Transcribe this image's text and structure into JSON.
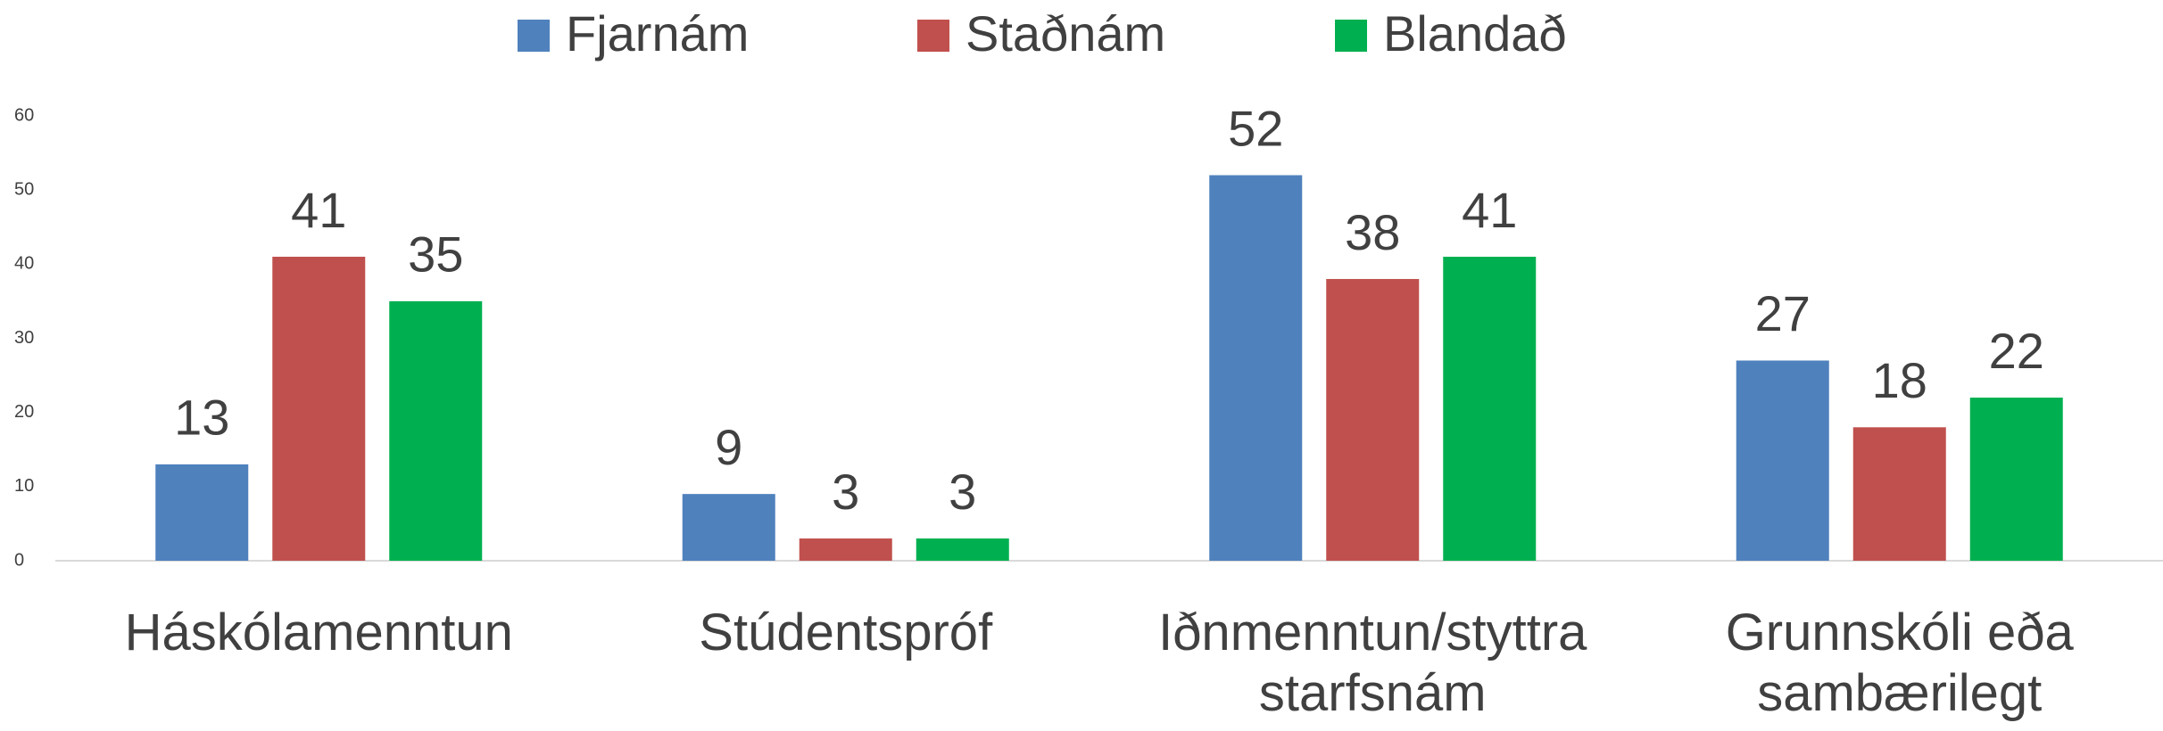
{
  "chart_data": {
    "type": "bar",
    "categories": [
      "Háskólamenntun",
      "Stúdentspróf",
      "Iðnmenntun/styttra starfsnám",
      "Grunnskóli eða sambærilegt"
    ],
    "series": [
      {
        "name": "Fjarnám",
        "color": "#4f81bd",
        "values": [
          13,
          9,
          52,
          27
        ]
      },
      {
        "name": "Staðnám",
        "color": "#c0504d",
        "values": [
          41,
          3,
          38,
          18
        ]
      },
      {
        "name": "Blandað",
        "color": "#00b050",
        "values": [
          35,
          3,
          41,
          22
        ]
      }
    ],
    "ylim": [
      0,
      60
    ],
    "yticks": [
      0,
      10,
      20,
      30,
      40,
      50,
      60
    ],
    "grid": false,
    "legend": "top"
  }
}
